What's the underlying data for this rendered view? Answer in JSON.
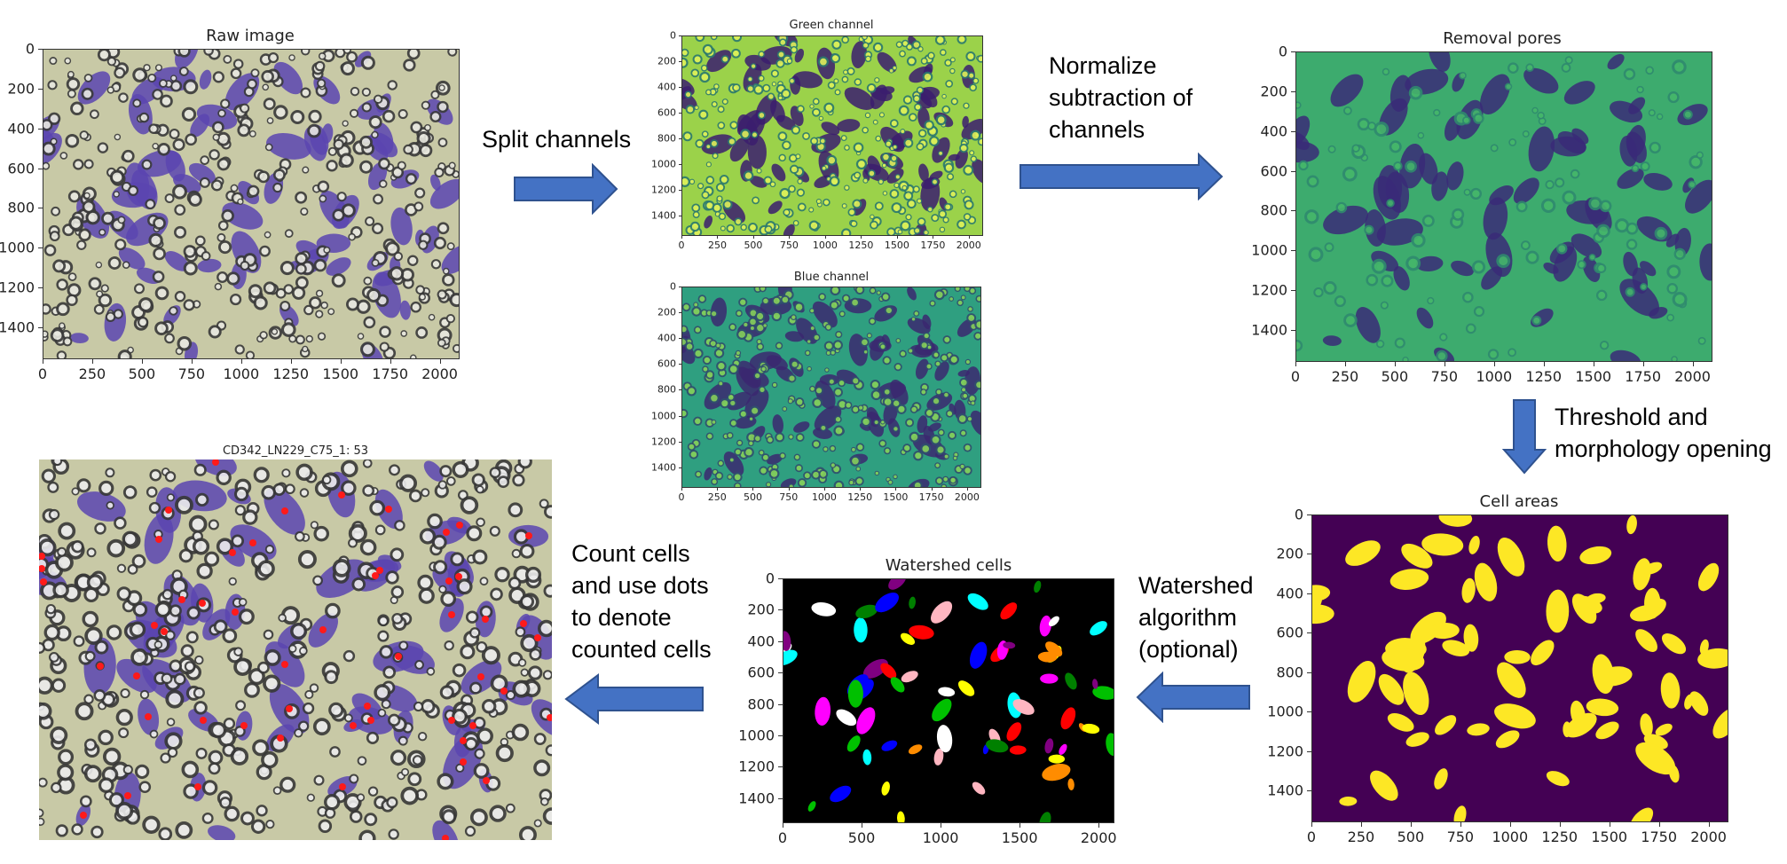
{
  "panels": {
    "raw": {
      "title": "Raw image",
      "x_ticks": [
        "0",
        "250",
        "500",
        "750",
        "1000",
        "1250",
        "1500",
        "1750",
        "2000"
      ],
      "y_ticks": [
        "0",
        "200",
        "400",
        "600",
        "800",
        "1000",
        "1200",
        "1400"
      ]
    },
    "green": {
      "title": "Green channel",
      "x_ticks": [
        "0",
        "250",
        "500",
        "750",
        "1000",
        "1250",
        "1500",
        "1750",
        "2000"
      ],
      "y_ticks": [
        "0",
        "200",
        "400",
        "600",
        "800",
        "1000",
        "1200",
        "1400"
      ]
    },
    "blue": {
      "title": "Blue channel",
      "x_ticks": [
        "0",
        "250",
        "500",
        "750",
        "1000",
        "1250",
        "1500",
        "1750",
        "2000"
      ],
      "y_ticks": [
        "0",
        "200",
        "400",
        "600",
        "800",
        "1000",
        "1200",
        "1400"
      ]
    },
    "removal": {
      "title": "Removal pores",
      "x_ticks": [
        "0",
        "250",
        "500",
        "750",
        "1000",
        "1250",
        "1500",
        "1750",
        "2000"
      ],
      "y_ticks": [
        "0",
        "200",
        "400",
        "600",
        "800",
        "1000",
        "1200",
        "1400"
      ]
    },
    "areas": {
      "title": "Cell areas",
      "x_ticks": [
        "0",
        "250",
        "500",
        "750",
        "1000",
        "1250",
        "1500",
        "1750",
        "2000"
      ],
      "y_ticks": [
        "0",
        "200",
        "400",
        "600",
        "800",
        "1000",
        "1200",
        "1400"
      ]
    },
    "watershed": {
      "title": "Watershed cells",
      "x_ticks": [
        "0",
        "500",
        "1000",
        "1500",
        "2000"
      ],
      "y_ticks": [
        "0",
        "200",
        "400",
        "600",
        "800",
        "1000",
        "1200",
        "1400"
      ]
    },
    "counted": {
      "title": "CD342_LN229_C75_1: 53"
    }
  },
  "steps": {
    "split": "Split channels",
    "normalize": "Normalize\nsubtraction of\nchannels",
    "threshold": "Threshold and\nmorphology opening",
    "watershed": "Watershed\nalgorithm\n(optional)",
    "count": "Count cells\nand use dots\nto denote\ncounted cells"
  },
  "colors": {
    "arrow_fill": "#4472c4",
    "arrow_stroke": "#2f528f",
    "raw_bg": "#c8c9a6",
    "cell_purple": "#6a55b0",
    "viridis_dark": "#440154",
    "viridis_green": "#35b779",
    "viridis_yellow": "#fde725",
    "count_dot": "#ff1a1a"
  }
}
